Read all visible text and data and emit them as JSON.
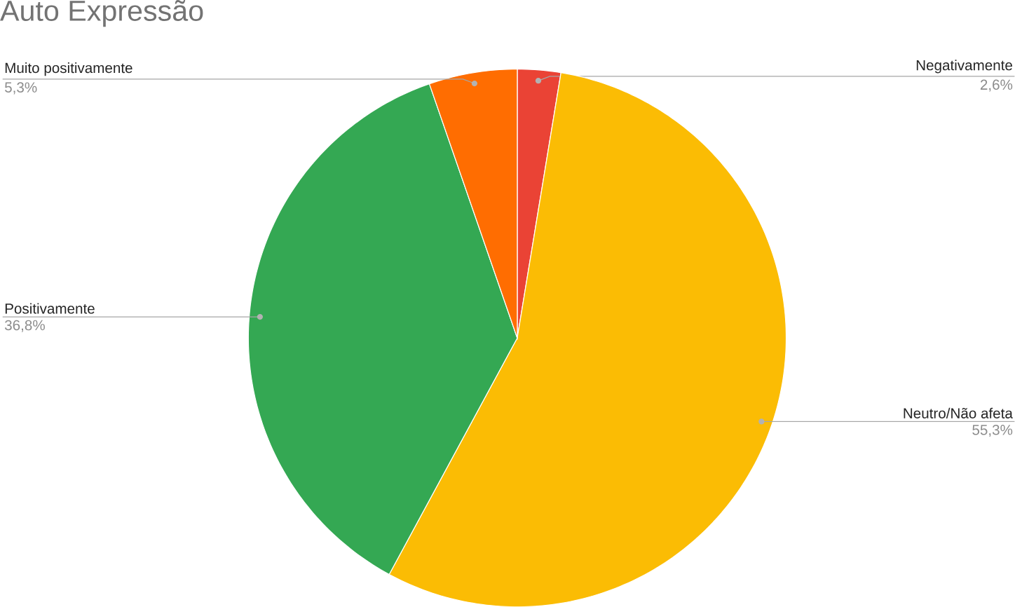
{
  "chart_data": {
    "type": "pie",
    "title": "Auto Expressão",
    "categories": [
      "Negativamente",
      "Neutro/Não afeta",
      "Positivamente",
      "Muito positivamente"
    ],
    "values": [
      2.6,
      55.3,
      36.8,
      5.3
    ],
    "colors": [
      "#ea4335",
      "#fbbc04",
      "#34a853",
      "#ff6d01"
    ],
    "value_labels": [
      "2,6%",
      "55,3%",
      "36,8%",
      "5,3%"
    ]
  }
}
